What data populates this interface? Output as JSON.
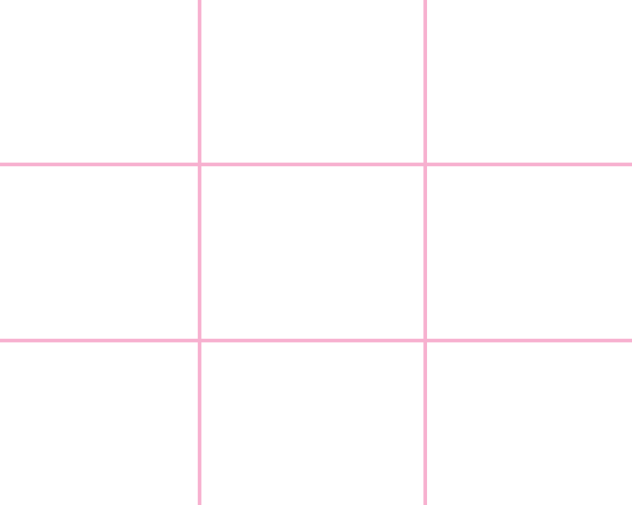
{
  "board": {
    "rows": 3,
    "cols": 3,
    "line_color": "#f7b0cf",
    "background_color": "#ffffff",
    "cells": [
      "",
      "",
      "",
      "",
      "",
      "",
      "",
      "",
      ""
    ]
  }
}
